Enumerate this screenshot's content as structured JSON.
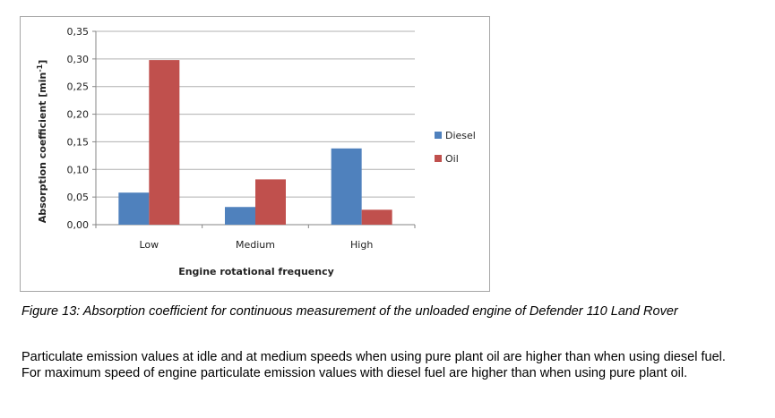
{
  "chart_data": {
    "type": "bar",
    "categories": [
      "Low",
      "Medium",
      "High"
    ],
    "series": [
      {
        "name": "Diesel",
        "color": "#4f81bd",
        "values": [
          0.058,
          0.032,
          0.138
        ]
      },
      {
        "name": "Oil",
        "color": "#c0504d",
        "values": [
          0.298,
          0.082,
          0.027
        ]
      }
    ],
    "ylim": [
      0,
      0.35
    ],
    "yticks": [
      "0,00",
      "0,05",
      "0,10",
      "0,15",
      "0,20",
      "0,25",
      "0,30",
      "0,35"
    ],
    "ylabel_main": "Absorption coefficient  [min",
    "ylabel_sup": "-1",
    "ylabel_end": "]",
    "xlabel": "Engine rotational frequency",
    "grid": true,
    "legend_position": "right"
  },
  "caption": "Figure 13: Absorption coefficient for continuous measurement of the unloaded engine of Defender 110 Land Rover",
  "body_text": "Particulate emission values at idle and at medium speeds when using pure plant oil are higher than when using diesel fuel. For maximum speed of engine particulate emission values with diesel fuel are higher than when using pure plant oil."
}
